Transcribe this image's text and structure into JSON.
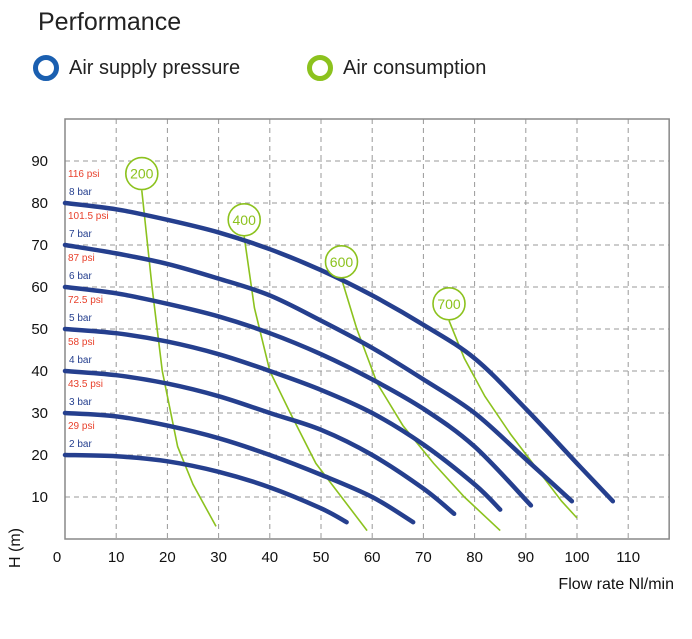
{
  "title": "Performance",
  "legend": [
    {
      "label": "Air supply pressure",
      "color": "#1a5fb0"
    },
    {
      "label": "Air consumption",
      "color": "#8cc21e"
    }
  ],
  "chart_data": {
    "type": "line",
    "xlabel": "Flow rate Nl/min",
    "ylabel": "H (m)",
    "xlim": [
      0,
      118
    ],
    "ylim": [
      0,
      100
    ],
    "xticks": [
      0,
      10,
      20,
      30,
      40,
      50,
      60,
      70,
      80,
      90,
      100,
      110
    ],
    "yticks": [
      10,
      20,
      30,
      40,
      50,
      60,
      70,
      80,
      90
    ],
    "grid": true,
    "pressure_color": "#253f8e",
    "psi_color": "#e8412c",
    "consumption_color": "#8cc21e",
    "pressure_series": [
      {
        "bar": "2 bar",
        "psi": "29 psi",
        "points": [
          [
            0,
            20
          ],
          [
            10,
            19.7
          ],
          [
            20,
            18.5
          ],
          [
            30,
            16
          ],
          [
            40,
            12.3
          ],
          [
            50,
            7.3
          ],
          [
            55,
            4
          ]
        ]
      },
      {
        "bar": "3 bar",
        "psi": "43.5 psi",
        "points": [
          [
            0,
            30
          ],
          [
            10,
            29.2
          ],
          [
            20,
            27
          ],
          [
            30,
            24
          ],
          [
            40,
            20
          ],
          [
            50,
            15.3
          ],
          [
            60,
            10
          ],
          [
            68,
            4
          ]
        ]
      },
      {
        "bar": "4 bar",
        "psi": "58 psi",
        "points": [
          [
            0,
            40
          ],
          [
            10,
            39
          ],
          [
            20,
            37
          ],
          [
            30,
            34
          ],
          [
            40,
            30
          ],
          [
            50,
            26
          ],
          [
            60,
            20
          ],
          [
            70,
            12
          ],
          [
            76,
            6
          ]
        ]
      },
      {
        "bar": "5 bar",
        "psi": "72.5 psi",
        "points": [
          [
            0,
            50
          ],
          [
            10,
            49
          ],
          [
            20,
            47
          ],
          [
            30,
            44
          ],
          [
            40,
            40
          ],
          [
            50,
            35.5
          ],
          [
            60,
            30
          ],
          [
            70,
            22.5
          ],
          [
            80,
            13
          ],
          [
            85,
            7
          ]
        ]
      },
      {
        "bar": "6 bar",
        "psi": "87 psi",
        "points": [
          [
            0,
            60
          ],
          [
            10,
            58.5
          ],
          [
            20,
            56
          ],
          [
            30,
            53
          ],
          [
            40,
            49
          ],
          [
            50,
            44
          ],
          [
            60,
            38
          ],
          [
            70,
            31
          ],
          [
            80,
            22
          ],
          [
            91,
            8
          ]
        ]
      },
      {
        "bar": "7 bar",
        "psi": "101.5 psi",
        "points": [
          [
            0,
            70
          ],
          [
            10,
            68
          ],
          [
            20,
            65.5
          ],
          [
            30,
            62
          ],
          [
            40,
            58
          ],
          [
            50,
            52
          ],
          [
            60,
            45.5
          ],
          [
            70,
            38
          ],
          [
            80,
            30
          ],
          [
            90,
            19
          ],
          [
            99,
            9
          ]
        ]
      },
      {
        "bar": "8 bar",
        "psi": "116 psi",
        "points": [
          [
            0,
            80
          ],
          [
            10,
            78.5
          ],
          [
            20,
            76
          ],
          [
            30,
            73
          ],
          [
            40,
            69
          ],
          [
            50,
            64
          ],
          [
            60,
            58
          ],
          [
            70,
            51
          ],
          [
            80,
            43
          ],
          [
            90,
            31
          ],
          [
            100,
            18
          ],
          [
            107,
            9
          ]
        ]
      }
    ],
    "consumption_series": [
      {
        "label": "200",
        "marker": [
          15,
          87
        ],
        "points": [
          [
            15,
            83
          ],
          [
            17,
            60
          ],
          [
            19,
            40
          ],
          [
            22,
            22
          ],
          [
            25,
            13
          ],
          [
            29.5,
            3
          ]
        ]
      },
      {
        "label": "400",
        "marker": [
          35,
          76
        ],
        "points": [
          [
            35,
            72
          ],
          [
            37,
            55
          ],
          [
            40,
            40
          ],
          [
            44,
            30
          ],
          [
            49,
            18
          ],
          [
            54,
            10
          ],
          [
            59,
            2
          ]
        ]
      },
      {
        "label": "600",
        "marker": [
          54,
          66
        ],
        "points": [
          [
            54,
            62
          ],
          [
            57,
            50
          ],
          [
            61,
            37
          ],
          [
            66,
            27
          ],
          [
            72,
            18
          ],
          [
            78,
            10
          ],
          [
            85,
            2
          ]
        ]
      },
      {
        "label": "700",
        "marker": [
          75,
          56
        ],
        "points": [
          [
            75,
            52
          ],
          [
            78,
            43
          ],
          [
            82,
            34
          ],
          [
            87,
            25
          ],
          [
            92,
            17
          ],
          [
            97,
            9
          ],
          [
            100,
            5
          ]
        ]
      }
    ]
  }
}
